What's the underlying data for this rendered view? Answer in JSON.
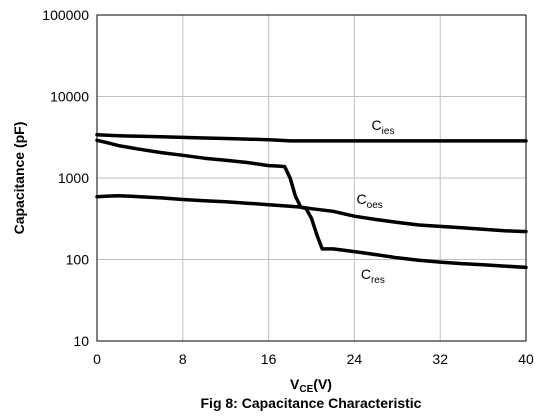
{
  "chart_data": {
    "type": "line",
    "title": "",
    "caption": "Fig 8: Capacitance Characteristic",
    "xlabel": {
      "main": "V",
      "sub": "CE",
      "tail": "(V)"
    },
    "ylabel": "Capacitance (pF)",
    "xlim": [
      0,
      40
    ],
    "ylim": [
      10,
      100000
    ],
    "yscale": "log",
    "xticks": [
      "0",
      "8",
      "16",
      "24",
      "32",
      "40"
    ],
    "yticks": [
      "10",
      "100",
      "1000",
      "10000",
      "100000"
    ],
    "grid": true,
    "line_color": "#000000",
    "series": [
      {
        "name": "Cies",
        "label_main": "C",
        "label_sub": "ies",
        "x": [
          0,
          2,
          4,
          6,
          8,
          10,
          12,
          14,
          16,
          17,
          18,
          20,
          22,
          24,
          26,
          28,
          30,
          32,
          34,
          36,
          38,
          40
        ],
        "y": [
          3400,
          3300,
          3250,
          3200,
          3150,
          3100,
          3050,
          3000,
          2950,
          2900,
          2850,
          2850,
          2850,
          2850,
          2850,
          2850,
          2850,
          2850,
          2850,
          2850,
          2850,
          2850
        ]
      },
      {
        "name": "Coes",
        "label_main": "C",
        "label_sub": "oes",
        "x": [
          0,
          1,
          2,
          4,
          6,
          8,
          10,
          12,
          14,
          16,
          17,
          17.5,
          18,
          18.5,
          19,
          20,
          22,
          24,
          26,
          28,
          30,
          32,
          34,
          36,
          38,
          40
        ],
        "y": [
          2900,
          2700,
          2500,
          2250,
          2050,
          1900,
          1750,
          1650,
          1550,
          1420,
          1400,
          1380,
          1000,
          600,
          440,
          420,
          390,
          340,
          310,
          285,
          265,
          255,
          245,
          235,
          225,
          220
        ]
      },
      {
        "name": "Cres",
        "label_main": "C",
        "label_sub": "res",
        "x": [
          0,
          1,
          2,
          3,
          4,
          6,
          8,
          10,
          12,
          14,
          16,
          18,
          19,
          19.5,
          20,
          20.5,
          21,
          22,
          24,
          26,
          28,
          30,
          32,
          34,
          36,
          38,
          40
        ],
        "y": [
          590,
          600,
          605,
          600,
          590,
          570,
          545,
          525,
          510,
          490,
          470,
          450,
          440,
          420,
          320,
          200,
          135,
          135,
          125,
          115,
          105,
          98,
          93,
          89,
          86,
          83,
          80
        ]
      }
    ],
    "annotations": [
      {
        "series": "Cies",
        "x": 25.6,
        "y": 3900
      },
      {
        "series": "Coes",
        "x": 24.2,
        "y": 480
      },
      {
        "series": "Cres",
        "x": 24.6,
        "y": 58
      }
    ]
  }
}
